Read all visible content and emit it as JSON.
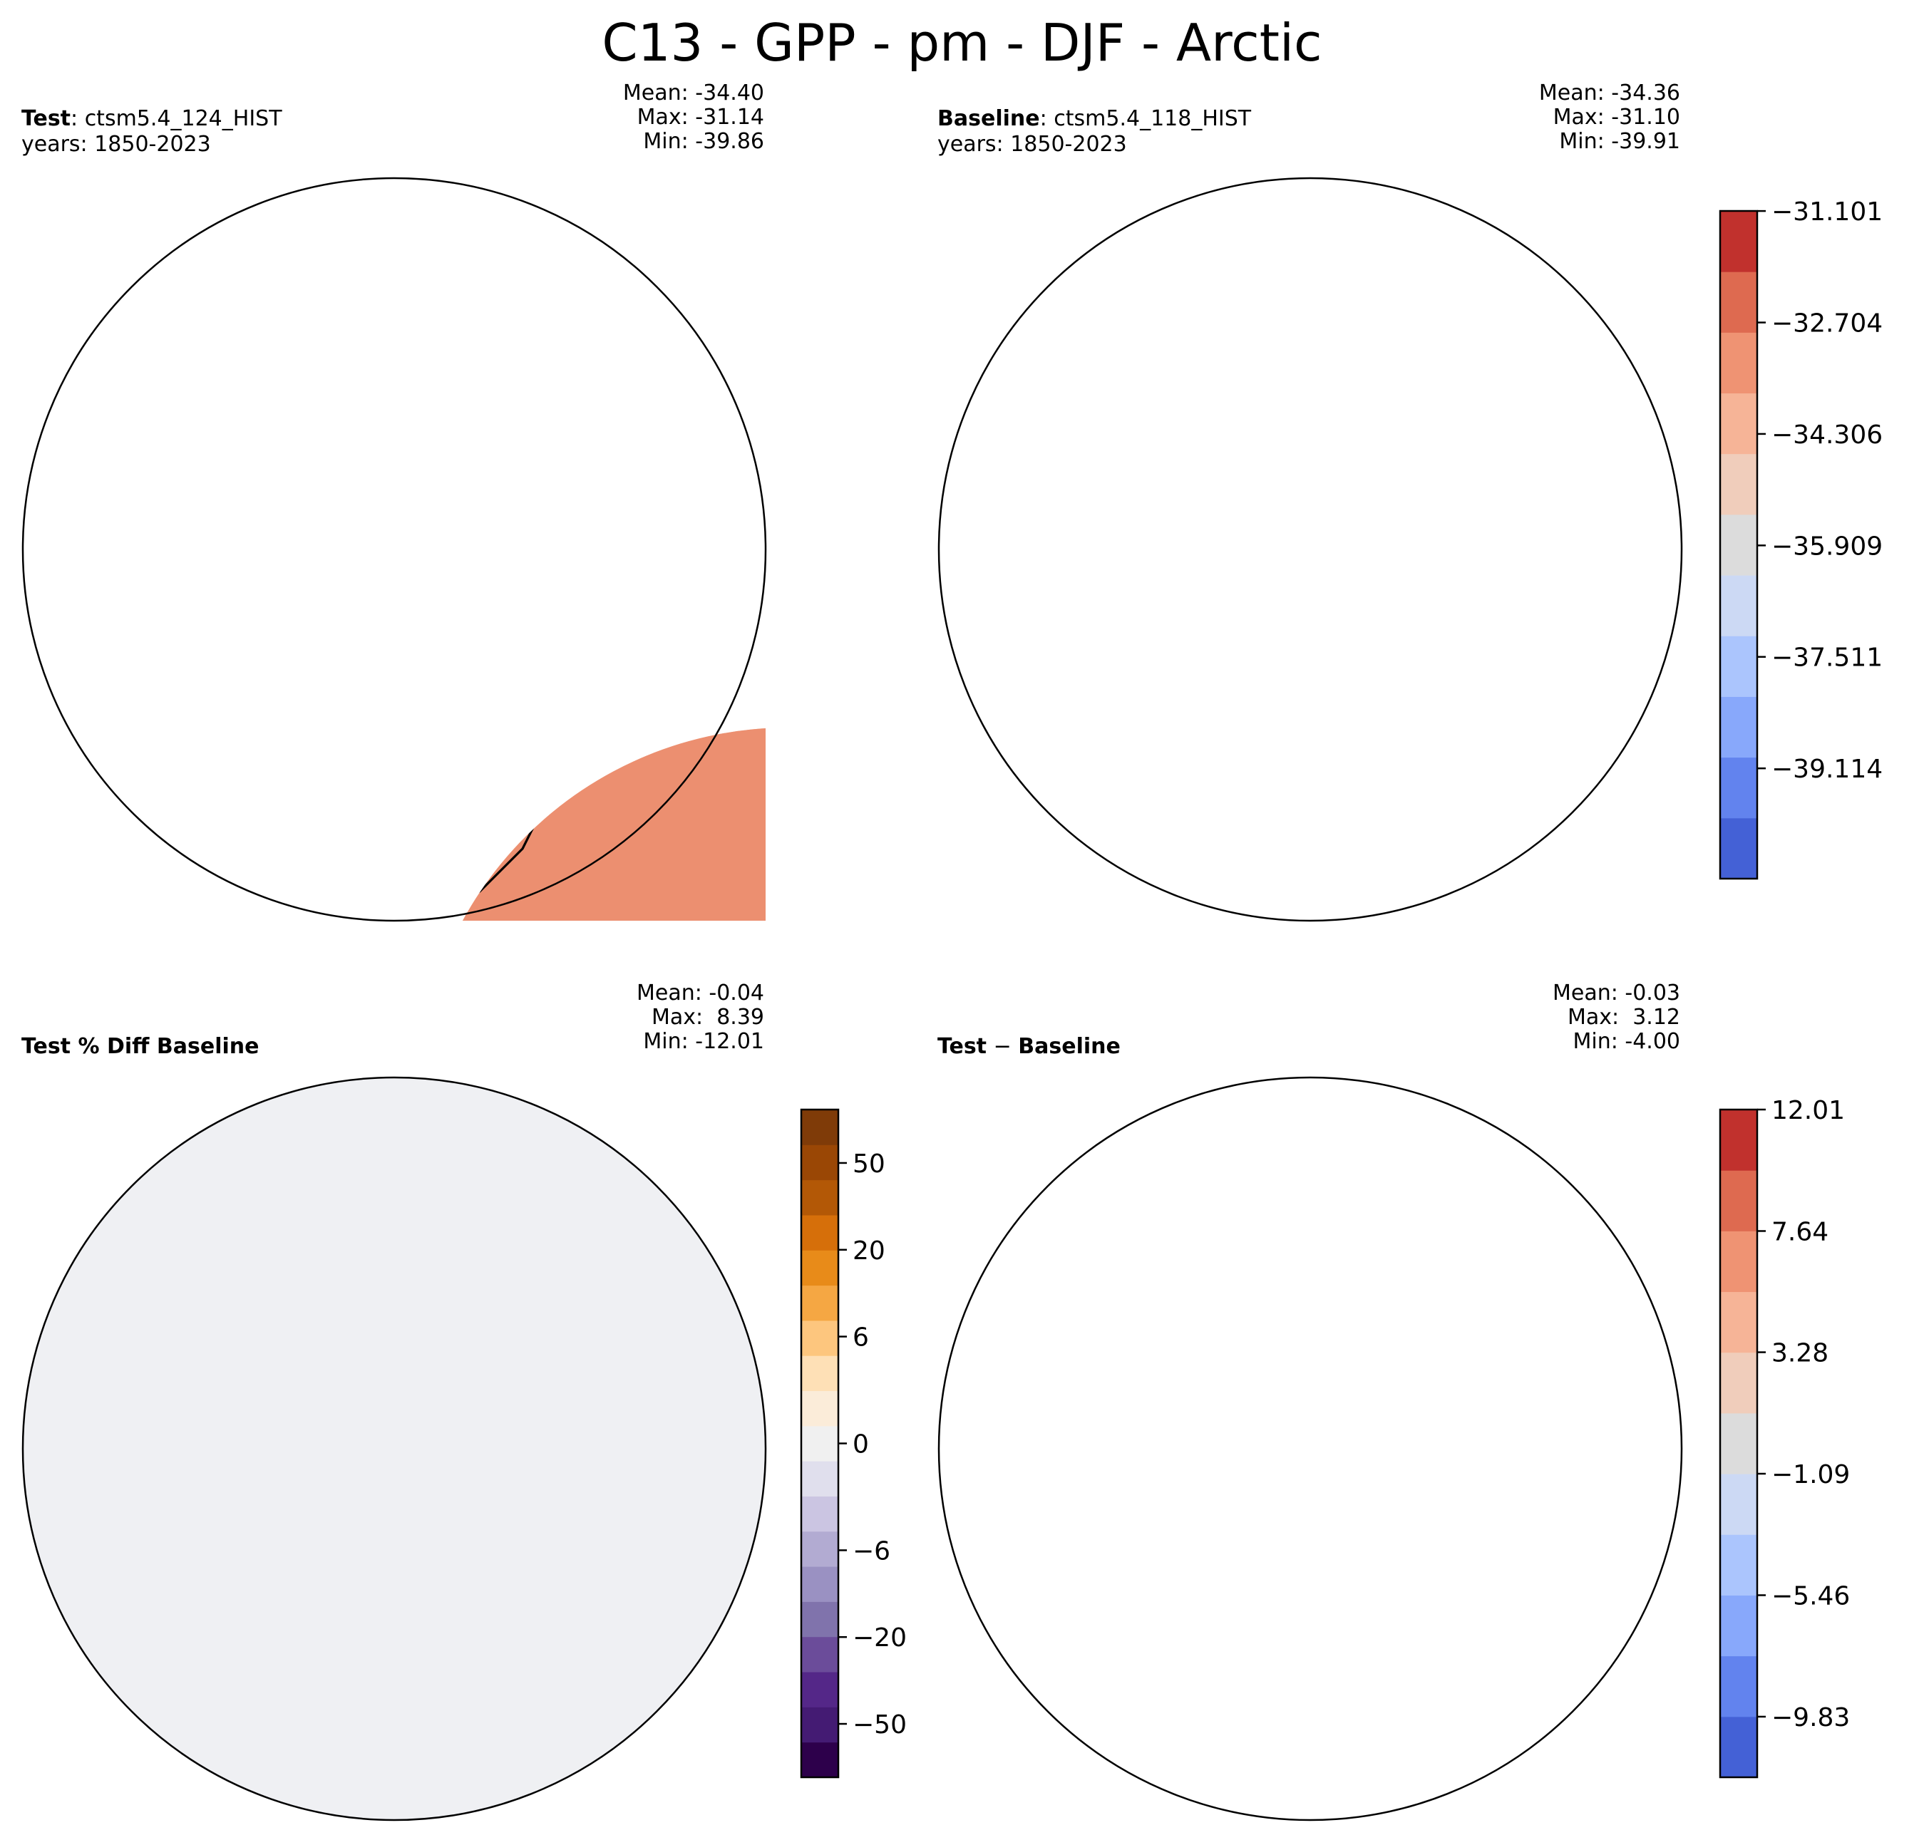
{
  "title": "C13 - GPP - pm - DJF - Arctic",
  "panels": {
    "test": {
      "label_bold": "Test",
      "label_sep": ": ",
      "case": "ctsm5.4_124_HIST",
      "years": "years: 1850-2023",
      "mean": "Mean: -34.40",
      "max": "Max: -31.14",
      "min": "Min: -39.86"
    },
    "baseline": {
      "label_bold": "Baseline",
      "label_sep": ": ",
      "case": "ctsm5.4_118_HIST",
      "years": "years: 1850-2023",
      "mean": "Mean: -34.36",
      "max": "Max: -31.10",
      "min": "Min: -39.91"
    },
    "pctdiff": {
      "label": "Test % Diff Baseline",
      "mean": "Mean: -0.04",
      "max": "Max:  8.39",
      "min": "Min: -12.01"
    },
    "diff": {
      "label_a": "Test",
      "label_op": " − ",
      "label_b": "Baseline",
      "mean": "Mean: -0.03",
      "max": "Max:  3.12",
      "min": "Min: -4.00"
    }
  },
  "colorbars": {
    "main": {
      "ticks": [
        "−31.101",
        "−32.704",
        "−34.306",
        "−35.909",
        "−37.511",
        "−39.114"
      ],
      "tick_values": [
        -31.101,
        -32.704,
        -34.306,
        -35.909,
        -37.511,
        -39.114
      ],
      "range": [
        -40.7,
        -31.1
      ],
      "colors": [
        "#4461d6",
        "#6283ee",
        "#88a8fb",
        "#abc5fd",
        "#ccd9f4",
        "#dcdcdc",
        "#f0cdbb",
        "#f6b497",
        "#ef9373",
        "#de6a50",
        "#c1312d"
      ]
    },
    "pct": {
      "ticks": [
        "50",
        "20",
        "6",
        "0",
        "−6",
        "−20",
        "−50"
      ],
      "tick_positions": [
        0.92,
        0.79,
        0.66,
        0.5,
        0.34,
        0.21,
        0.08
      ],
      "colors": [
        "#2d004b",
        "#441b73",
        "#542788",
        "#6b4c9a",
        "#8073ac",
        "#9a91c2",
        "#b2abd2",
        "#cbc5e2",
        "#e0dfed",
        "#f0f0f0",
        "#fbecd9",
        "#fee0b6",
        "#fdc67e",
        "#f5a743",
        "#e88b19",
        "#d66f0a",
        "#b35806",
        "#9a4705",
        "#7f3b08"
      ]
    },
    "diff": {
      "ticks": [
        "12.01",
        "7.64",
        "3.28",
        "−1.09",
        "−5.46",
        "−9.83"
      ],
      "tick_values": [
        12.01,
        7.64,
        3.28,
        -1.09,
        -5.46,
        -9.83
      ],
      "range": [
        -12.01,
        12.01
      ],
      "colors": [
        "#4461d6",
        "#6283ee",
        "#88a8fb",
        "#abc5fd",
        "#ccd9f4",
        "#dcdcdc",
        "#f0cdbb",
        "#f6b497",
        "#ef9373",
        "#de6a50",
        "#c1312d"
      ]
    }
  }
}
